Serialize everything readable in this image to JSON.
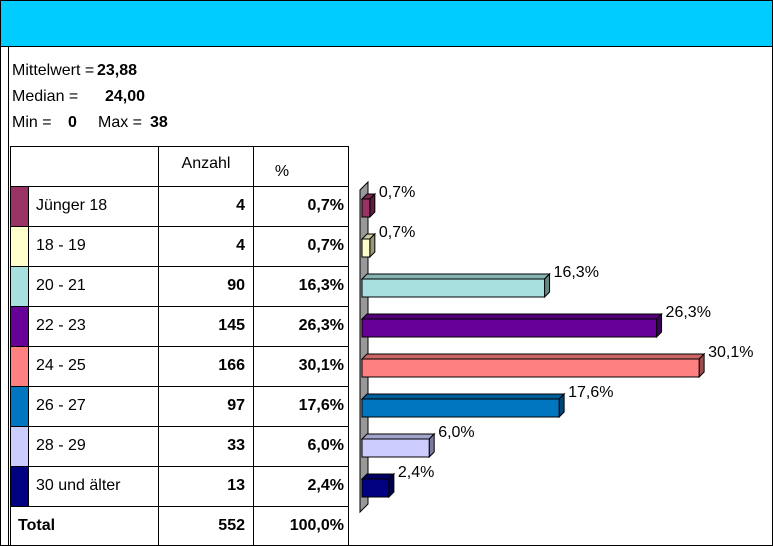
{
  "stats": {
    "mean_label": "Mittelwert =",
    "mean": "23,88",
    "median_label": "Median =",
    "median": "24,00",
    "min_label": "Min =",
    "min": "0",
    "max_label": "Max =",
    "max": "38"
  },
  "table": {
    "header": [
      "Anzahl",
      "%"
    ],
    "rows": [
      {
        "label": "Jünger 18",
        "count": 4,
        "pct": "0,7%"
      },
      {
        "label": "18 - 19",
        "count": 4,
        "pct": "0,7%"
      },
      {
        "label": "20 - 21",
        "count": 90,
        "pct": "16,3%"
      },
      {
        "label": "22 - 23",
        "count": 145,
        "pct": "26,3%"
      },
      {
        "label": "24 - 25",
        "count": 166,
        "pct": "30,1%"
      },
      {
        "label": "26 - 27",
        "count": 97,
        "pct": "17,6%"
      },
      {
        "label": "28 - 29",
        "count": 33,
        "pct": "6,0%"
      },
      {
        "label": "30 und älter",
        "count": 13,
        "pct": "2,4%"
      }
    ],
    "total": {
      "label": "Total",
      "count": 552,
      "pct": "100,0%"
    }
  },
  "chart_data": {
    "type": "bar",
    "orientation": "horizontal",
    "values": [
      0.7,
      0.7,
      16.3,
      26.3,
      30.1,
      17.6,
      6.0,
      2.4
    ],
    "value_labels": [
      "0,7%",
      "0,7%",
      "16,3%",
      "26,3%",
      "30,1%",
      "17,6%",
      "6,0%",
      "2,4%"
    ],
    "colors": [
      "#993366",
      "#ffffcc",
      "#a8e0e0",
      "#660099",
      "#ff8080",
      "#0076c0",
      "#ccccff",
      "#000080"
    ]
  }
}
